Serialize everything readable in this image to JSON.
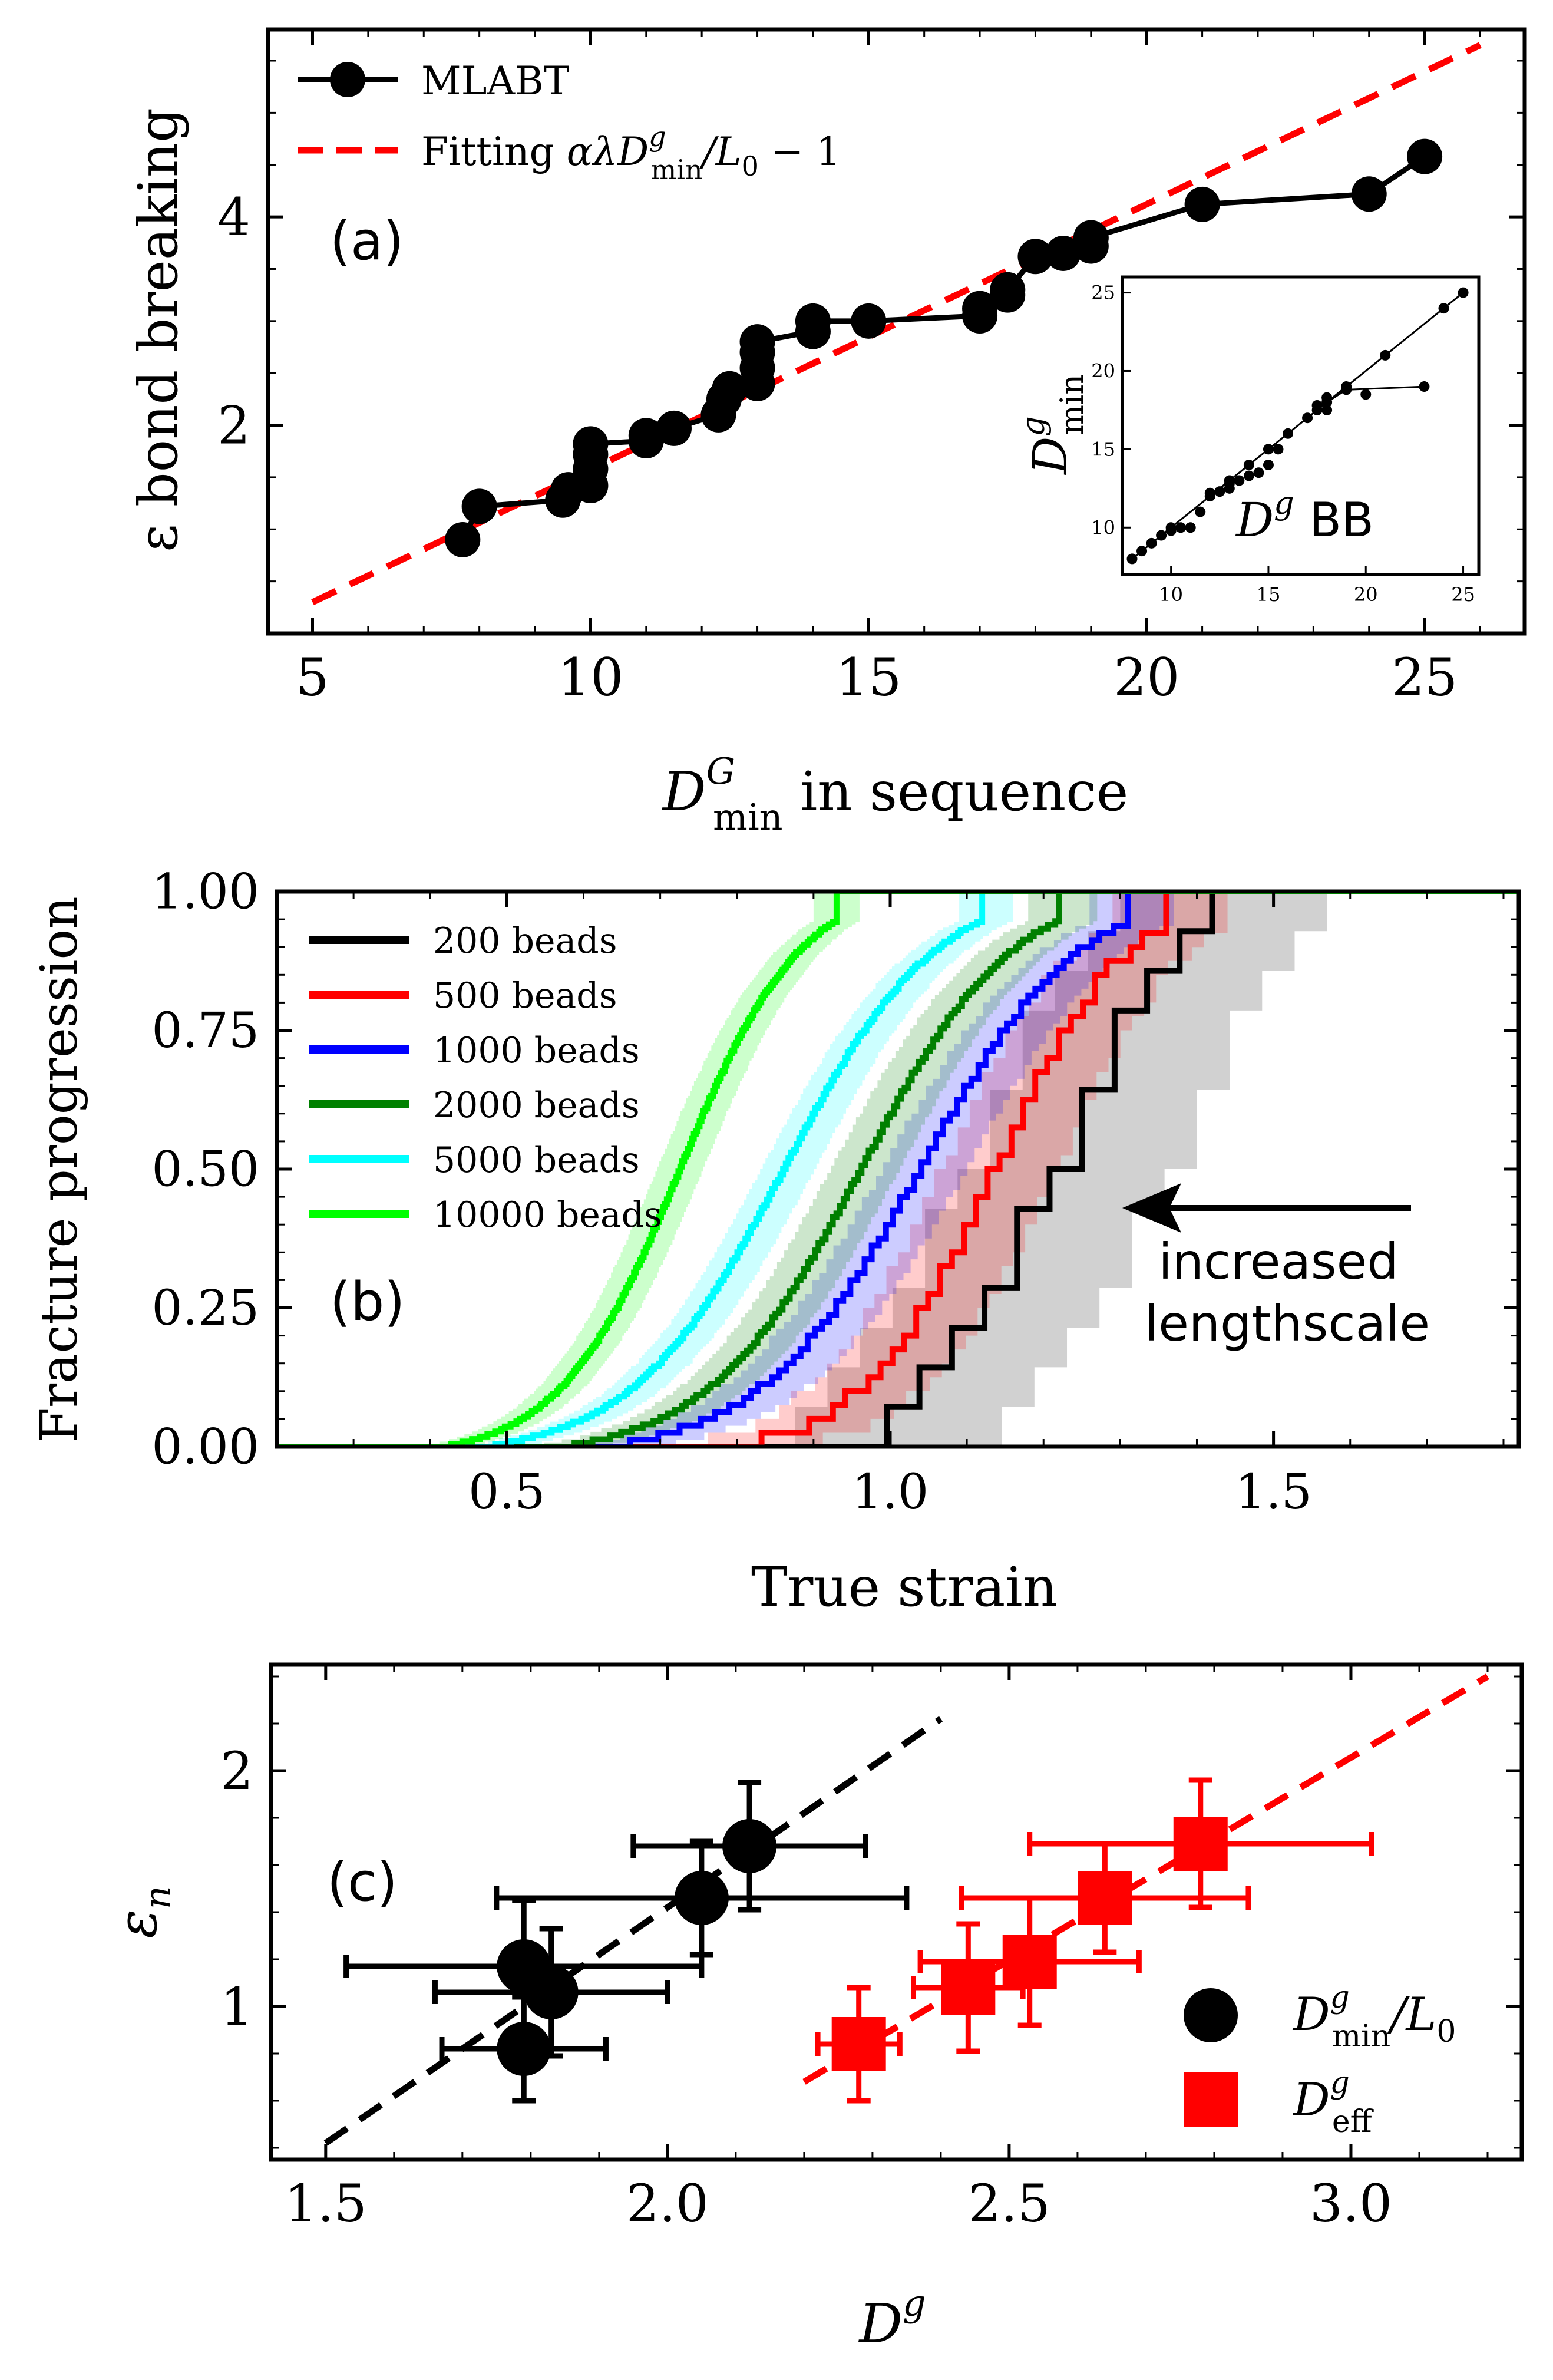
{
  "colors": {
    "black": "#000000",
    "red": "#ff0000",
    "blue": "#0000ff",
    "green": "#008000",
    "cyan": "#00ffff",
    "lime": "#00ff00",
    "gray": "#808080"
  },
  "chart_data": [
    {
      "id": "a",
      "type": "line",
      "panel_label": "(a)",
      "xlabel_main": "D",
      "xlabel_sup": "G",
      "xlabel_sub": "min",
      "xlabel_rest": " in sequence",
      "ylabel": "ε bond breaking",
      "xlim": [
        4.2,
        26.8
      ],
      "ylim": [
        0.0,
        5.8
      ],
      "xticks": [
        5,
        10,
        15,
        20,
        25
      ],
      "yticks": [
        2,
        4
      ],
      "legend": {
        "position": "top-left",
        "entries": [
          {
            "label": "MLABT",
            "style": "line-marker"
          },
          {
            "label": "Fitting αλD",
            "sup": "g",
            "sub": "min",
            "tail": "/L",
            "tail_sub": "0",
            "tail_rest": " − 1",
            "style": "dashed"
          }
        ]
      },
      "series": [
        {
          "name": "MLABT",
          "x": [
            7.7,
            8.0,
            9.5,
            9.6,
            10.0,
            10.0,
            10.0,
            10.0,
            11.0,
            11.0,
            11.5,
            12.3,
            12.4,
            12.5,
            13.0,
            13.0,
            13.0,
            13.0,
            14.0,
            14.0,
            15.0,
            17.0,
            17.0,
            17.5,
            17.5,
            18.0,
            18.5,
            19.0,
            19.0,
            21.0,
            24.0,
            25.0
          ],
          "y": [
            0.9,
            1.22,
            1.28,
            1.38,
            1.42,
            1.58,
            1.72,
            1.82,
            1.85,
            1.9,
            1.97,
            2.1,
            2.25,
            2.35,
            2.4,
            2.55,
            2.7,
            2.8,
            2.9,
            3.0,
            3.0,
            3.05,
            3.12,
            3.25,
            3.3,
            3.62,
            3.65,
            3.72,
            3.8,
            4.12,
            4.22,
            4.58
          ]
        },
        {
          "name": "Fitting",
          "style": "dashed",
          "x": [
            5.0,
            26.0
          ],
          "y": [
            0.3,
            5.65
          ]
        }
      ],
      "inset": {
        "ylabel_main": "D",
        "ylabel_sup": "g",
        "ylabel_sub": "min",
        "xlabel_main": "D",
        "xlabel_sup": "g",
        "xlabel_rest": " BB",
        "xlim": [
          7.5,
          25.8
        ],
        "ylim": [
          7.0,
          26.0
        ],
        "xticks": [
          10,
          15,
          20,
          25
        ],
        "yticks": [
          10,
          15,
          20,
          25
        ],
        "points": {
          "x": [
            8,
            8.5,
            9,
            9.5,
            10,
            10,
            10.5,
            11,
            11.5,
            12,
            12.5,
            13,
            13.5,
            13,
            14,
            14.5,
            15,
            15,
            15.5,
            16,
            17,
            17.5,
            18,
            18,
            19,
            21,
            24,
            25,
            23,
            20,
            19,
            18,
            17.5,
            14,
            13,
            12
          ],
          "y": [
            8,
            8.5,
            9,
            9.5,
            10,
            9.8,
            10,
            10,
            11,
            12,
            12.3,
            13,
            13,
            12.8,
            14,
            13.5,
            14,
            15,
            15,
            16,
            17,
            17.5,
            18,
            17.5,
            19,
            21,
            24,
            25,
            19,
            18.5,
            18.8,
            18.3,
            17.8,
            13.3,
            12.5,
            12.2
          ]
        },
        "diagonal": {
          "x": [
            8,
            25
          ],
          "y": [
            8,
            25
          ]
        },
        "branch": {
          "x": [
            18,
            19,
            23
          ],
          "y": [
            18,
            18.8,
            19
          ]
        }
      }
    },
    {
      "id": "b",
      "type": "line",
      "panel_label": "(b)",
      "xlabel": "True strain",
      "ylabel": "Fracture progression",
      "xlim": [
        0.2,
        1.82
      ],
      "ylim": [
        0.0,
        1.0
      ],
      "xticks": [
        0.5,
        1.0,
        1.5
      ],
      "ytick_labels": [
        "0.00",
        "0.25",
        "0.50",
        "0.75",
        "1.00"
      ],
      "annotation": {
        "line1": "increased",
        "line2": "lengthscale"
      },
      "series": [
        {
          "name": "200 beads",
          "color": "#000000",
          "start": 0.98,
          "end": 1.42,
          "band_lo": 0.12,
          "band_hi": 0.15,
          "steps": 14
        },
        {
          "name": "500 beads",
          "color": "#ff0000",
          "start": 0.9,
          "end": 1.36,
          "band_lo": 0.07,
          "band_hi": 0.08,
          "steps": 40
        },
        {
          "name": "1000 beads",
          "color": "#0000ff",
          "start": 0.76,
          "end": 1.31,
          "band_lo": 0.05,
          "band_hi": 0.06,
          "steps": 80
        },
        {
          "name": "2000 beads",
          "color": "#008000",
          "start": 0.7,
          "end": 1.22,
          "band_lo": 0.04,
          "band_hi": 0.05,
          "steps": 150
        },
        {
          "name": "5000 beads",
          "color": "#00ffff",
          "start": 0.6,
          "end": 1.12,
          "band_lo": 0.03,
          "band_hi": 0.04,
          "steps": 200
        },
        {
          "name": "10000 beads",
          "color": "#00ff00",
          "start": 0.52,
          "end": 0.93,
          "band_lo": 0.03,
          "band_hi": 0.03,
          "steps": 220
        }
      ]
    },
    {
      "id": "c",
      "type": "scatter",
      "panel_label": "(c)",
      "xlabel_main": "D",
      "xlabel_sup": "g",
      "ylabel_main": "ε",
      "ylabel_sub": "n",
      "xlim": [
        1.42,
        3.25
      ],
      "ylim": [
        0.35,
        2.45
      ],
      "xticks": [
        1.5,
        2.0,
        2.5,
        3.0
      ],
      "ytick_labels": [
        "1",
        "2"
      ],
      "legend": {
        "position": "bottom-right",
        "entries": [
          {
            "main": "D",
            "sup": "g",
            "sub": "min",
            "tail": "/L",
            "tail_sub": "0",
            "marker": "circle"
          },
          {
            "main": "D",
            "sup": "g",
            "sub": "eff",
            "marker": "square"
          }
        ]
      },
      "series": [
        {
          "name": "Dg_min/L0",
          "color": "#000000",
          "marker": "circle",
          "points": [
            {
              "x": 1.79,
              "y": 0.82,
              "xerr": 0.12,
              "yerr": 0.22
            },
            {
              "x": 1.79,
              "y": 1.17,
              "xerr": 0.26,
              "yerr": 0.28
            },
            {
              "x": 1.83,
              "y": 1.06,
              "xerr": 0.17,
              "yerr": 0.27
            },
            {
              "x": 2.05,
              "y": 1.46,
              "xerr": 0.3,
              "yerr": 0.24
            },
            {
              "x": 2.12,
              "y": 1.68,
              "xerr": 0.17,
              "yerr": 0.27
            }
          ],
          "fit": {
            "x": [
              1.5,
              2.4
            ],
            "y": [
              0.42,
              2.22
            ]
          }
        },
        {
          "name": "Dg_eff",
          "color": "#ff0000",
          "marker": "square",
          "points": [
            {
              "x": 2.28,
              "y": 0.84,
              "xerr": 0.06,
              "yerr": 0.24
            },
            {
              "x": 2.44,
              "y": 1.08,
              "xerr": 0.08,
              "yerr": 0.27
            },
            {
              "x": 2.53,
              "y": 1.19,
              "xerr": 0.16,
              "yerr": 0.27
            },
            {
              "x": 2.64,
              "y": 1.46,
              "xerr": 0.21,
              "yerr": 0.23
            },
            {
              "x": 2.78,
              "y": 1.69,
              "xerr": 0.25,
              "yerr": 0.27
            }
          ],
          "fit": {
            "x": [
              2.2,
              3.2
            ],
            "y": [
              0.68,
              2.4
            ]
          }
        }
      ]
    }
  ]
}
